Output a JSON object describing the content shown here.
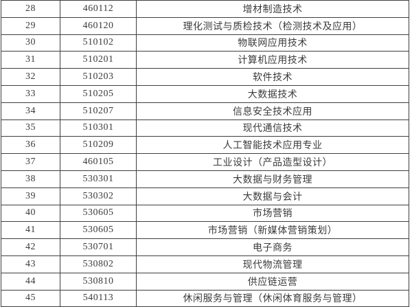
{
  "table": {
    "rows": [
      [
        "28",
        "460112",
        "增材制造技术"
      ],
      [
        "29",
        "460120",
        "理化测试与质检技术（检测技术及应用）"
      ],
      [
        "30",
        "510102",
        "物联网应用技术"
      ],
      [
        "31",
        "510201",
        "计算机应用技术"
      ],
      [
        "32",
        "510203",
        "软件技术"
      ],
      [
        "33",
        "510205",
        "大数据技术"
      ],
      [
        "34",
        "510207",
        "信息安全技术应用"
      ],
      [
        "35",
        "510301",
        "现代通信技术"
      ],
      [
        "36",
        "510209",
        "人工智能技术应用专业"
      ],
      [
        "37",
        "460105",
        "工业设计（产品造型设计）"
      ],
      [
        "38",
        "530301",
        "大数据与财务管理"
      ],
      [
        "39",
        "530302",
        "大数据与会计"
      ],
      [
        "40",
        "530605",
        "市场营销"
      ],
      [
        "41",
        "530605",
        "市场营销（新媒体营销策划）"
      ],
      [
        "42",
        "530701",
        "电子商务"
      ],
      [
        "43",
        "530802",
        "现代物流管理"
      ],
      [
        "44",
        "530810",
        "供应链运营"
      ],
      [
        "45",
        "540113",
        "休闲服务与管理（休闲体育服务与管理）"
      ]
    ]
  }
}
